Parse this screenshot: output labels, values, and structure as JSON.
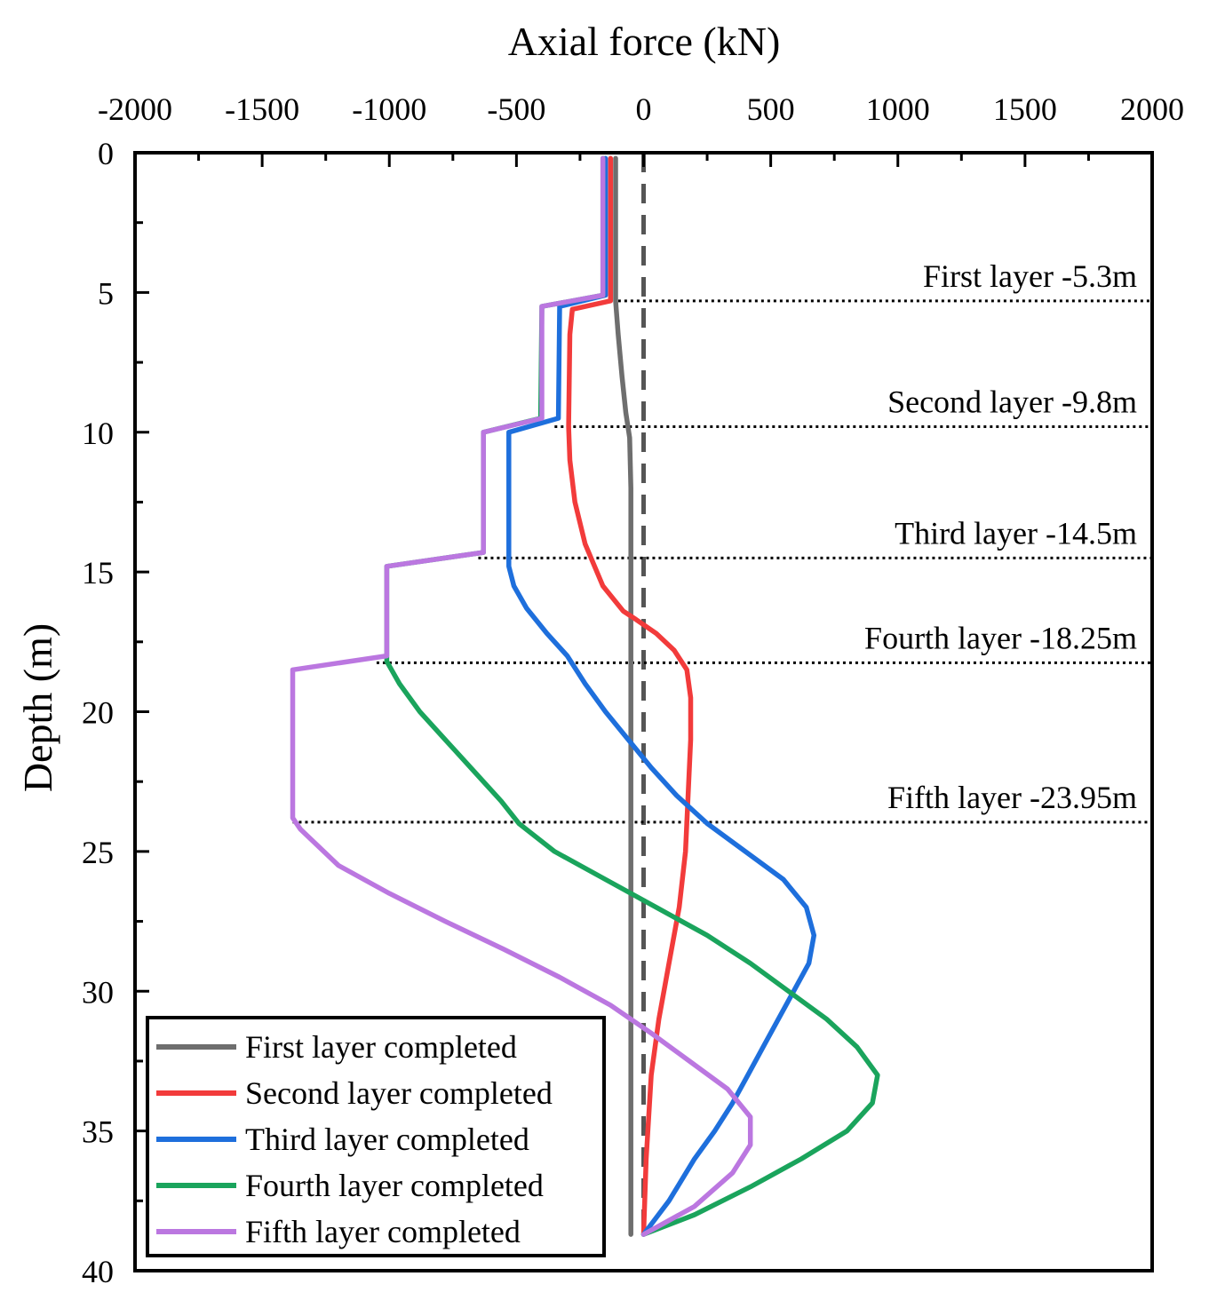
{
  "chart_data": {
    "type": "line",
    "title": "",
    "xlabel": "Axial force (kN)",
    "ylabel": "Depth (m)",
    "xlim": [
      -2000,
      2000
    ],
    "ylim": [
      0,
      40
    ],
    "y_inverted": true,
    "x_axis_position": "top",
    "x_ticks": [
      -2000,
      -1500,
      -1000,
      -500,
      0,
      500,
      1000,
      1500,
      2000
    ],
    "x_tick_labels": [
      "-2000",
      "-1500",
      "-1000",
      "-500",
      "0",
      "500",
      "1000",
      "1500",
      "2000"
    ],
    "y_ticks": [
      0,
      5,
      10,
      15,
      20,
      25,
      30,
      35,
      40
    ],
    "y_tick_labels": [
      "0",
      "5",
      "10",
      "15",
      "20",
      "25",
      "30",
      "35",
      "40"
    ],
    "grid": false,
    "legend_position": "bottom-left",
    "reference_line": {
      "x": 0,
      "style": "dashed",
      "color": "#555555"
    },
    "annotations": [
      {
        "text": "First layer -5.3m",
        "depth": 5.3,
        "x_from": -100,
        "x_to": 2000
      },
      {
        "text": "Second layer -9.8m",
        "depth": 9.8,
        "x_from": -350,
        "x_to": 2000
      },
      {
        "text": "Third layer -14.5m",
        "depth": 14.5,
        "x_from": -650,
        "x_to": 2000
      },
      {
        "text": "Fourth layer -18.25m",
        "depth": 18.25,
        "x_from": -1050,
        "x_to": 2000
      },
      {
        "text": "Fifth layer -23.95m",
        "depth": 23.95,
        "x_from": -1380,
        "x_to": 2000
      }
    ],
    "series": [
      {
        "name": "First layer completed",
        "color": "#6e6e6e",
        "points": [
          [
            -110,
            0.2
          ],
          [
            -110,
            5.3
          ],
          [
            -100,
            6.5
          ],
          [
            -85,
            8.0
          ],
          [
            -70,
            9.3
          ],
          [
            -55,
            10.2
          ],
          [
            -50,
            12
          ],
          [
            -50,
            20
          ],
          [
            -50,
            30
          ],
          [
            -50,
            38.7
          ]
        ]
      },
      {
        "name": "Second layer completed",
        "color": "#f23b3b",
        "points": [
          [
            -130,
            0.2
          ],
          [
            -130,
            5.3
          ],
          [
            -280,
            5.6
          ],
          [
            -290,
            6.5
          ],
          [
            -295,
            9.8
          ],
          [
            -290,
            11
          ],
          [
            -270,
            12.5
          ],
          [
            -230,
            14
          ],
          [
            -160,
            15.5
          ],
          [
            -80,
            16.4
          ],
          [
            -30,
            16.7
          ],
          [
            50,
            17.2
          ],
          [
            120,
            17.8
          ],
          [
            170,
            18.5
          ],
          [
            185,
            19.5
          ],
          [
            185,
            21
          ],
          [
            175,
            23
          ],
          [
            165,
            25
          ],
          [
            140,
            27
          ],
          [
            100,
            29
          ],
          [
            60,
            31
          ],
          [
            30,
            33
          ],
          [
            10,
            36
          ],
          [
            0,
            38.7
          ]
        ]
      },
      {
        "name": "Third layer completed",
        "color": "#1e6fdc",
        "points": [
          [
            -150,
            0.2
          ],
          [
            -150,
            5.1
          ],
          [
            -330,
            5.5
          ],
          [
            -335,
            9.5
          ],
          [
            -530,
            10.0
          ],
          [
            -530,
            14.8
          ],
          [
            -510,
            15.5
          ],
          [
            -460,
            16.3
          ],
          [
            -380,
            17.2
          ],
          [
            -300,
            18.0
          ],
          [
            -230,
            19.0
          ],
          [
            -150,
            20.0
          ],
          [
            -60,
            21.0
          ],
          [
            30,
            22.0
          ],
          [
            130,
            23.0
          ],
          [
            250,
            24.0
          ],
          [
            400,
            25.0
          ],
          [
            550,
            26.0
          ],
          [
            640,
            27.0
          ],
          [
            670,
            28.0
          ],
          [
            650,
            29.0
          ],
          [
            590,
            30.0
          ],
          [
            530,
            31.0
          ],
          [
            470,
            32.0
          ],
          [
            410,
            33.0
          ],
          [
            350,
            34.0
          ],
          [
            280,
            35.0
          ],
          [
            200,
            36.0
          ],
          [
            100,
            37.5
          ],
          [
            0,
            38.7
          ]
        ]
      },
      {
        "name": "Fourth layer completed",
        "color": "#1aa45c",
        "points": [
          [
            -160,
            0.2
          ],
          [
            -160,
            5.1
          ],
          [
            -400,
            5.5
          ],
          [
            -405,
            9.5
          ],
          [
            -630,
            10.0
          ],
          [
            -630,
            14.3
          ],
          [
            -1010,
            14.8
          ],
          [
            -1010,
            18.2
          ],
          [
            -960,
            19.0
          ],
          [
            -880,
            20.0
          ],
          [
            -780,
            21.0
          ],
          [
            -680,
            22.0
          ],
          [
            -560,
            23.2
          ],
          [
            -490,
            24.0
          ],
          [
            -350,
            25.0
          ],
          [
            -150,
            26.0
          ],
          [
            50,
            27.0
          ],
          [
            250,
            28.0
          ],
          [
            420,
            29.0
          ],
          [
            570,
            30.0
          ],
          [
            720,
            31.0
          ],
          [
            840,
            32.0
          ],
          [
            920,
            33.0
          ],
          [
            900,
            34.0
          ],
          [
            800,
            35.0
          ],
          [
            620,
            36.0
          ],
          [
            420,
            37.0
          ],
          [
            200,
            38.0
          ],
          [
            0,
            38.7
          ]
        ]
      },
      {
        "name": "Fifth layer completed",
        "color": "#bb77e0",
        "points": [
          [
            -160,
            0.2
          ],
          [
            -160,
            5.1
          ],
          [
            -400,
            5.5
          ],
          [
            -400,
            9.5
          ],
          [
            -630,
            10.0
          ],
          [
            -630,
            14.3
          ],
          [
            -1010,
            14.8
          ],
          [
            -1010,
            18.0
          ],
          [
            -1380,
            18.5
          ],
          [
            -1380,
            23.8
          ],
          [
            -1350,
            24.2
          ],
          [
            -1200,
            25.5
          ],
          [
            -1000,
            26.5
          ],
          [
            -780,
            27.5
          ],
          [
            -550,
            28.5
          ],
          [
            -330,
            29.5
          ],
          [
            -130,
            30.5
          ],
          [
            30,
            31.5
          ],
          [
            180,
            32.5
          ],
          [
            330,
            33.5
          ],
          [
            420,
            34.5
          ],
          [
            420,
            35.5
          ],
          [
            350,
            36.5
          ],
          [
            200,
            37.7
          ],
          [
            0,
            38.7
          ]
        ]
      }
    ]
  }
}
